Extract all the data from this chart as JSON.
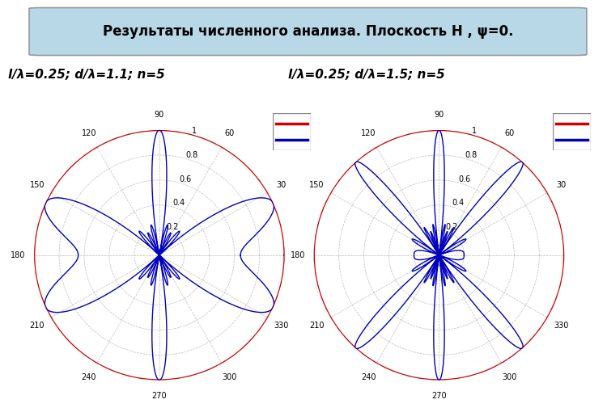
{
  "title": "Результаты численного анализа. Плоскость Н , ψ=0.",
  "title_bg": "#b8d8e8",
  "subtitle1": "l/λ=0.25; d/λ=1.1; n=5",
  "subtitle2": "l/λ=0.25; d/λ=1.5; n=5",
  "red_color": "#cc0000",
  "blue_color": "#0000bb",
  "grid_color": "#aaaaaa",
  "n_elements": 5,
  "d_over_lambda_1": 1.1,
  "d_over_lambda_2": 1.5,
  "l_over_lambda": 0.25,
  "r_ticks": [
    0.2,
    0.4,
    0.6,
    0.8,
    1.0
  ],
  "r_tick_labels": [
    "0.2",
    "0.4",
    "0.6",
    "0.8",
    "1"
  ],
  "theta_ticks_deg": [
    0,
    30,
    60,
    90,
    120,
    150,
    180,
    210,
    240,
    270,
    300,
    330
  ],
  "theta_labels": [
    "",
    "30",
    "60",
    "90",
    "120",
    "150",
    "180",
    "210",
    "240",
    "270",
    "300",
    "330"
  ]
}
